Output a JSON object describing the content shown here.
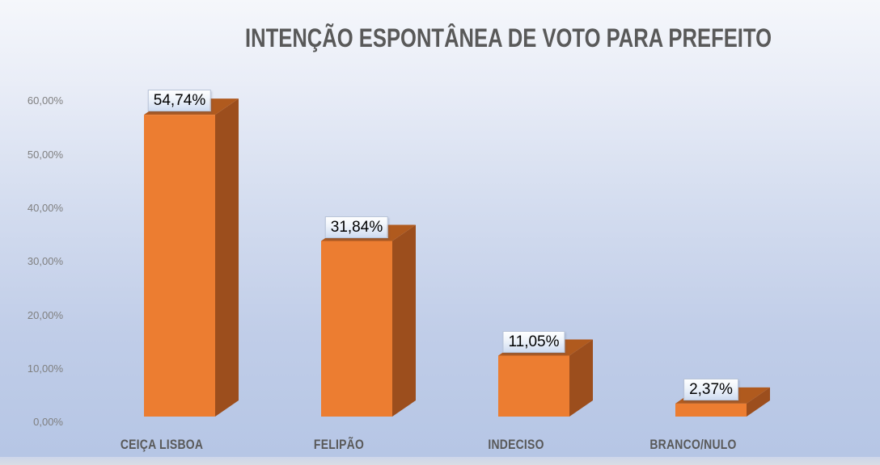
{
  "chart_data": {
    "type": "bar",
    "variant": "3d-column",
    "title": "INTENÇÃO ESPONTÂNEA DE VOTO PARA PREFEITO",
    "categories": [
      "CEIÇA LISBOA",
      "FELIPÃO",
      "INDECISO",
      "BRANCO/NULO"
    ],
    "values": [
      54.74,
      31.84,
      11.05,
      2.37
    ],
    "data_labels": [
      "54,74%",
      "31,84%",
      "11,05%",
      "2,37%"
    ],
    "y_axis": {
      "range": [
        0,
        60
      ],
      "tick_step": 10,
      "ticks": [
        {
          "value": 60,
          "label": "60,00%"
        },
        {
          "value": 50,
          "label": "50,00%"
        },
        {
          "value": 40,
          "label": "40,00%"
        },
        {
          "value": 30,
          "label": "30,00%"
        },
        {
          "value": 20,
          "label": "20,00%"
        },
        {
          "value": 10,
          "label": "10,00%"
        },
        {
          "value": 0,
          "label": "0,00%"
        }
      ],
      "gridlines": false
    },
    "legend": {
      "visible": false
    },
    "colors": {
      "bar_front": "#ec7d31",
      "bar_top": "#b05a1e",
      "bar_side": "#9c4e1d",
      "title_text": "#595959",
      "category_text": "#595959",
      "axis_tick_text": "#7f7f7f",
      "data_label_text": "#000000",
      "background_top": "#f5f7fb",
      "background_bottom": "#b6c6e5"
    }
  }
}
